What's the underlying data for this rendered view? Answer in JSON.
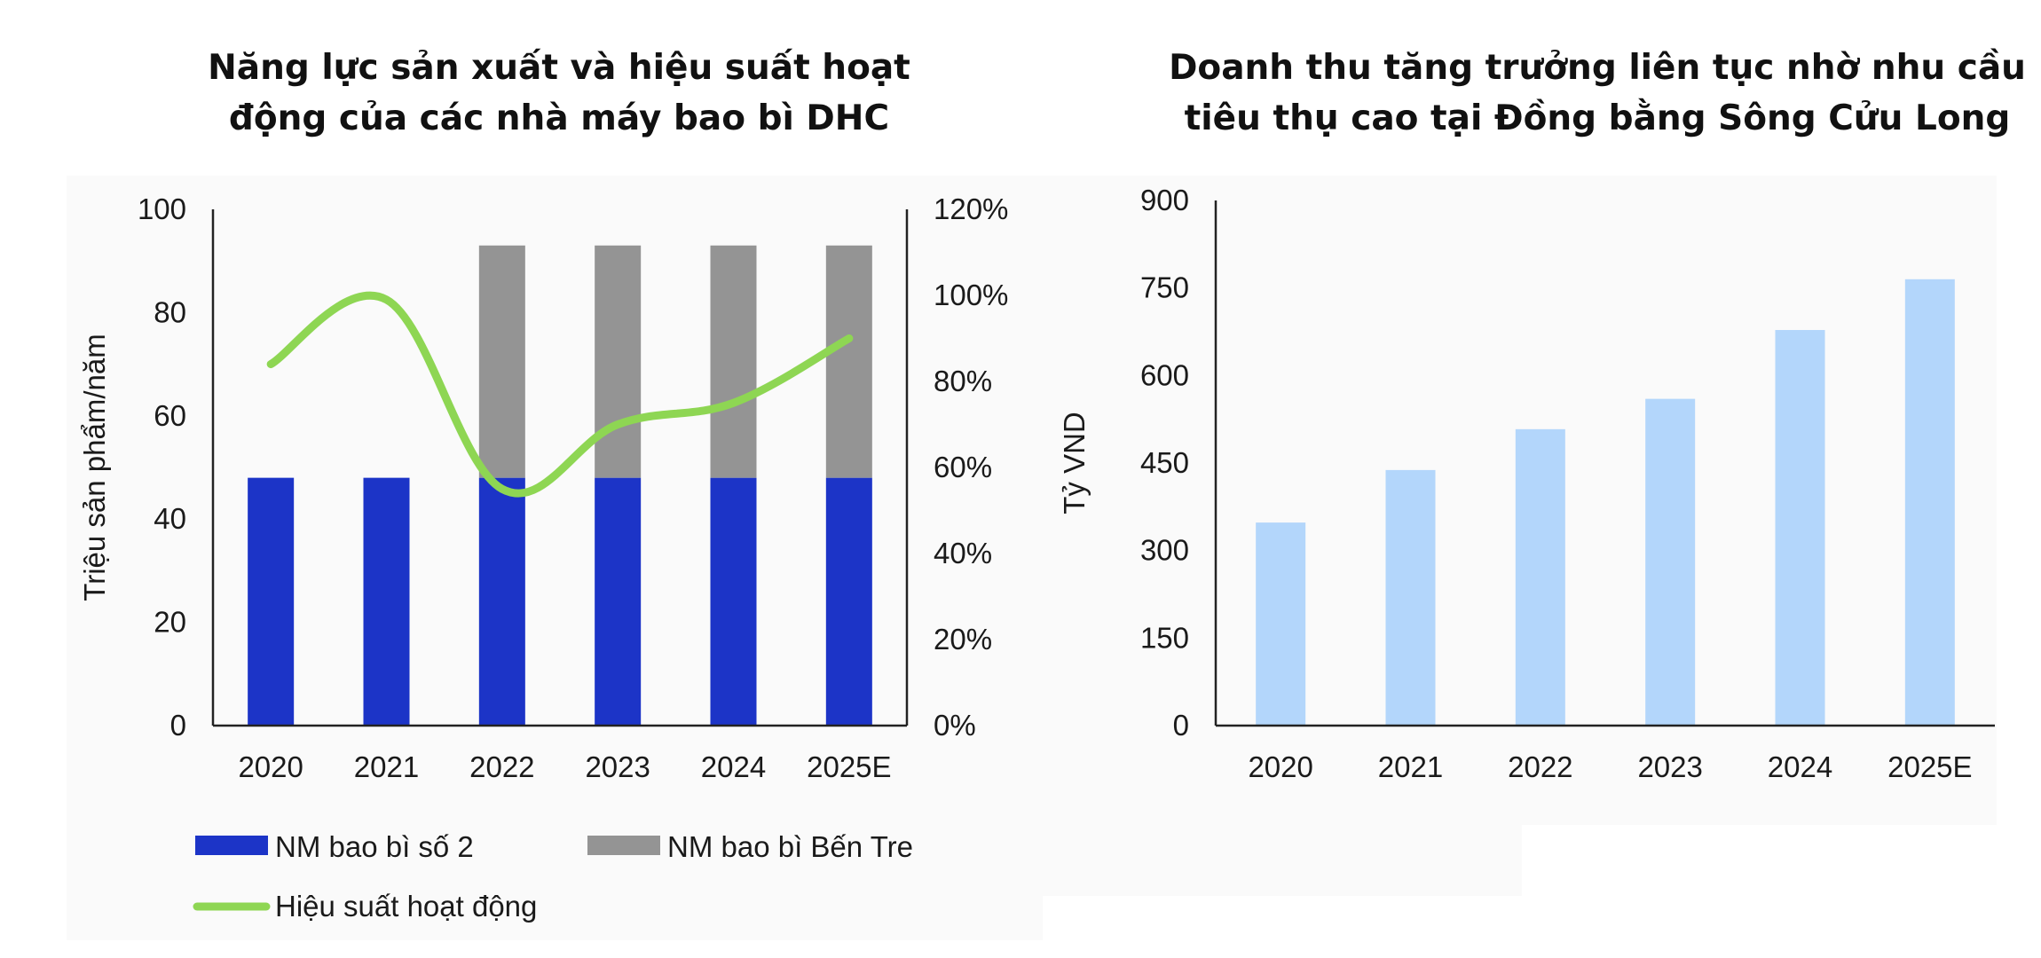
{
  "colors": {
    "nm2": "#1c34c7",
    "bentre": "#949494",
    "efficiency": "#8ed653",
    "revenue": "#b3d6fb"
  },
  "chart_data": [
    {
      "type": "bar",
      "stacked": true,
      "title_lines": [
        "Năng lực sản xuất và hiệu suất hoạt",
        "động của các nhà máy bao bì DHC"
      ],
      "ylabel": "Triệu sản phẩm/năm",
      "ylim": [
        0,
        100
      ],
      "yticks": [
        "0",
        "20",
        "40",
        "60",
        "80",
        "100"
      ],
      "y2lim": [
        0,
        1.2
      ],
      "y2ticks": [
        "0%",
        "20%",
        "40%",
        "60%",
        "80%",
        "100%",
        "120%"
      ],
      "categories": [
        "2020",
        "2021",
        "2022",
        "2023",
        "2024",
        "2025E"
      ],
      "series": [
        {
          "name": "NM bao bì số 2",
          "kind": "bar",
          "values": [
            48,
            48,
            48,
            48,
            48,
            48
          ]
        },
        {
          "name": "NM bao bì Bến Tre",
          "kind": "bar",
          "values": [
            0,
            0,
            45,
            45,
            45,
            45
          ]
        },
        {
          "name": "Hiệu suất hoạt động",
          "kind": "line",
          "axis": "right",
          "values": [
            0.84,
            0.99,
            0.55,
            0.7,
            0.75,
            0.9
          ]
        }
      ],
      "legend": [
        "NM bao bì số 2",
        "NM bao bì Bến Tre",
        "Hiệu suất hoạt động"
      ],
      "legend_position": "bottom"
    },
    {
      "type": "bar",
      "title_lines": [
        "Doanh thu tăng trưởng liên tục nhờ nhu cầu",
        "tiêu thụ cao tại Đồng bằng Sông Cửu Long"
      ],
      "ylabel": "Tỷ VND",
      "ylim": [
        0,
        900
      ],
      "yticks": [
        "0",
        "150",
        "300",
        "450",
        "600",
        "750",
        "900"
      ],
      "categories": [
        "2020",
        "2021",
        "2022",
        "2023",
        "2024",
        "2025E"
      ],
      "values": [
        348,
        438,
        508,
        560,
        678,
        765
      ]
    }
  ]
}
